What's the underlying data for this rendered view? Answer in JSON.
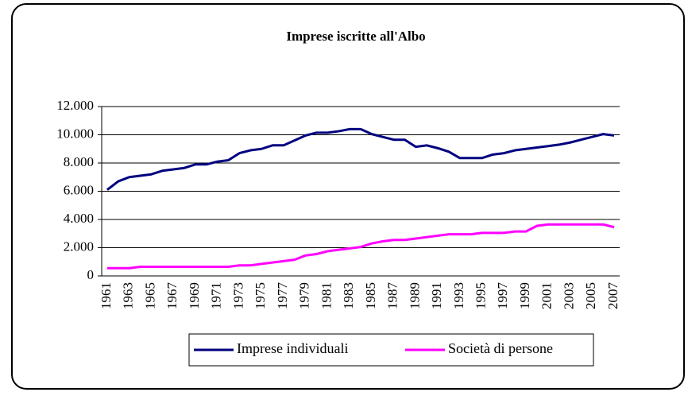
{
  "chart_data": {
    "type": "line",
    "title": "Imprese iscritte all'Albo",
    "categories": [
      "1961",
      null,
      "1963",
      null,
      "1965",
      null,
      "1967",
      null,
      "1969",
      null,
      "1971",
      null,
      "1973",
      null,
      "1975",
      null,
      "1977",
      null,
      "1979",
      null,
      "1981",
      null,
      "1983",
      null,
      "1985",
      null,
      "1987",
      null,
      "1989",
      null,
      "1991",
      null,
      "1993",
      null,
      "1995",
      null,
      "1997",
      null,
      "1999",
      null,
      "2001",
      null,
      "2003",
      null,
      "2005",
      null,
      "2007"
    ],
    "series": [
      {
        "name": "Imprese individuali",
        "color": "#000080",
        "values": [
          6100,
          6700,
          7000,
          7100,
          7200,
          7450,
          7550,
          7650,
          7900,
          7900,
          8100,
          8200,
          8700,
          8900,
          9000,
          9250,
          9250,
          9600,
          9950,
          10150,
          10150,
          10250,
          10400,
          10400,
          10050,
          9850,
          9650,
          9650,
          9150,
          9250,
          9050,
          8800,
          8350,
          8350,
          8350,
          8600,
          8700,
          8900,
          9000,
          9100,
          9200,
          9300,
          9450,
          9650,
          9850,
          10050,
          9950
        ]
      },
      {
        "name": "Società di persone",
        "color": "#ff00ff",
        "values": [
          550,
          550,
          550,
          650,
          650,
          650,
          650,
          650,
          650,
          650,
          650,
          650,
          750,
          750,
          850,
          950,
          1050,
          1150,
          1450,
          1550,
          1750,
          1850,
          1950,
          2050,
          2300,
          2450,
          2550,
          2550,
          2650,
          2750,
          2850,
          2950,
          2950,
          2950,
          3050,
          3050,
          3050,
          3150,
          3150,
          3550,
          3650,
          3650,
          3650,
          3650,
          3650,
          3650,
          3450
        ]
      }
    ],
    "ylim": [
      0,
      12000
    ],
    "yticks": [
      0,
      {
        "value": 2000,
        "label": "2.000"
      },
      {
        "value": 4000,
        "label": "4.000"
      },
      {
        "value": 6000,
        "label": "6.000"
      },
      {
        "value": 8000,
        "label": "8.000"
      },
      {
        "value": 10000,
        "label": "10.000"
      },
      {
        "value": 12000,
        "label": "12.000"
      }
    ],
    "grid": true,
    "legend": "bottom"
  }
}
